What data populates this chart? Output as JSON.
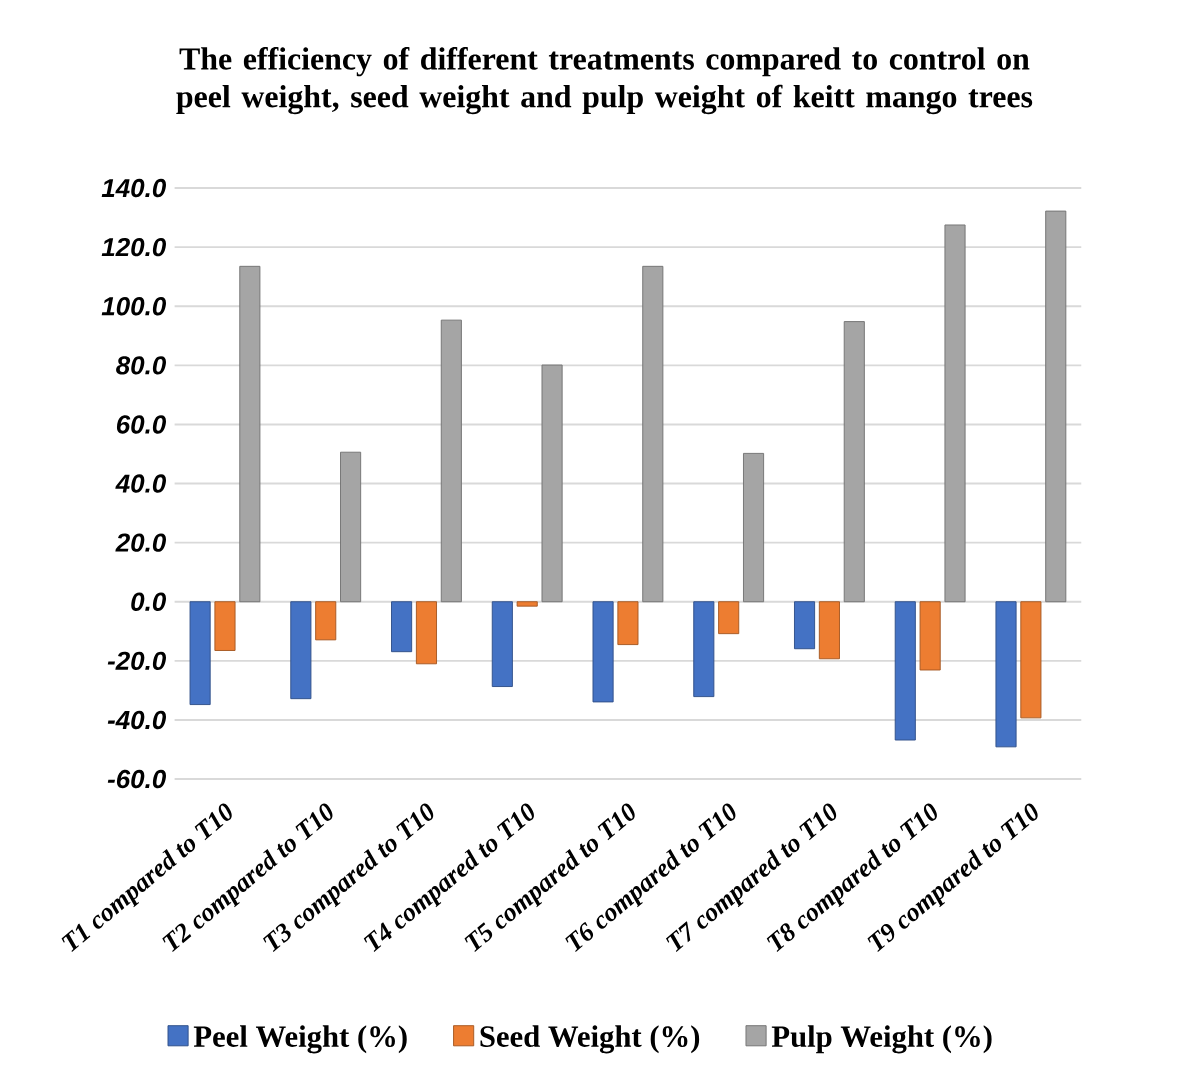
{
  "chart_data": {
    "type": "bar",
    "title": "The efficiency of different treatments compared to control on peel weight, seed weight and pulp weight of keitt mango trees",
    "categories": [
      "T1 compared to T10",
      "T2 compared to T10",
      "T3 compared to T10",
      "T4 compared to T10",
      "T5 compared to T10",
      "T6 compared to T10",
      "T7 compared to T10",
      "T8 compared to T10",
      "T9 compared to T10"
    ],
    "series": [
      {
        "name": "Peel Weight (%)",
        "color": "#4472c4",
        "values": [
          -34.8,
          -32.8,
          -16.9,
          -28.7,
          -33.9,
          -32.1,
          -15.9,
          -46.8,
          -49.1
        ]
      },
      {
        "name": "Seed Weight (%)",
        "color": "#ed7d31",
        "values": [
          -16.5,
          -12.9,
          -21.0,
          -1.5,
          -14.5,
          -10.8,
          -19.3,
          -23.1,
          -39.3
        ]
      },
      {
        "name": "Pulp Weight (%)",
        "color": "#a5a5a5",
        "values": [
          113.5,
          50.6,
          95.3,
          80.1,
          113.5,
          50.2,
          94.8,
          127.5,
          132.2
        ]
      }
    ],
    "ylim": [
      -60,
      140
    ],
    "yticks": [
      {
        "value": -60,
        "label": "-60.0"
      },
      {
        "value": -40,
        "label": "-40.0"
      },
      {
        "value": -20,
        "label": "-20.0"
      },
      {
        "value": 0,
        "label": "0.0"
      },
      {
        "value": 20,
        "label": "20.0"
      },
      {
        "value": 40,
        "label": "40.0"
      },
      {
        "value": 60,
        "label": "60.0"
      },
      {
        "value": 80,
        "label": "80.0"
      },
      {
        "value": 100,
        "label": "100.0"
      },
      {
        "value": 120,
        "label": "120.0"
      },
      {
        "value": 140,
        "label": "140.0"
      }
    ],
    "grid": "y",
    "legend": "bottom"
  }
}
